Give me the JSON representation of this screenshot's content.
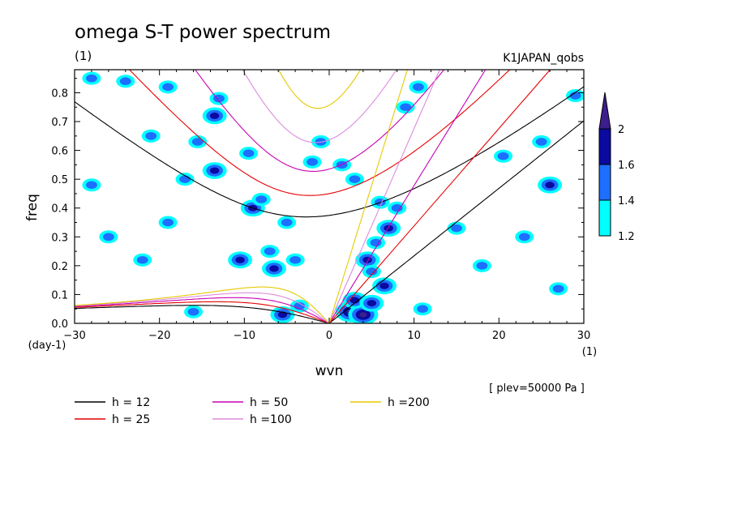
{
  "title": "omega S-T power spectrum",
  "subtitle": "(1)",
  "dataset_label": "K1JAPAN_qobs",
  "level_label": "[ plev=50000 Pa ]",
  "chart_data": {
    "type": "heatmap",
    "xlabel": "wvn",
    "xunit": "(1)",
    "ylabel": "freq",
    "yunit": "(day-1)",
    "xlim": [
      -30,
      30
    ],
    "ylim": [
      0,
      0.88
    ],
    "xticks": [
      -30,
      -20,
      -10,
      0,
      10,
      20,
      30
    ],
    "yticks": [
      0.0,
      0.1,
      0.2,
      0.3,
      0.4,
      0.5,
      0.6,
      0.7,
      0.8
    ],
    "colorbar": {
      "levels": [
        1.2,
        1.4,
        1.6,
        2
      ],
      "colors": [
        "#00ffff",
        "#1e6eff",
        "#0a0aa0",
        "#3c1e8c"
      ]
    },
    "dispersion_curves": [
      {
        "label": "h = 12",
        "h": 12,
        "color": "#000000"
      },
      {
        "label": "h = 25",
        "h": 25,
        "color": "#e60000"
      },
      {
        "label": "h = 50",
        "h": 50,
        "color": "#c800b4"
      },
      {
        "label": "h =100",
        "h": 100,
        "color": "#dc8cdc"
      },
      {
        "label": "h =200",
        "h": 200,
        "color": "#e6c800"
      }
    ],
    "power_blobs": [
      {
        "x": 2.5,
        "y": 0.04,
        "level": 3
      },
      {
        "x": 4.0,
        "y": 0.03,
        "level": 3
      },
      {
        "x": 3.0,
        "y": 0.08,
        "level": 2
      },
      {
        "x": 5.0,
        "y": 0.07,
        "level": 2
      },
      {
        "x": 6.5,
        "y": 0.13,
        "level": 2
      },
      {
        "x": 4.5,
        "y": 0.22,
        "level": 2
      },
      {
        "x": 5.5,
        "y": 0.28,
        "level": 1
      },
      {
        "x": 7.0,
        "y": 0.33,
        "level": 2
      },
      {
        "x": 8.0,
        "y": 0.4,
        "level": 1
      },
      {
        "x": 5.0,
        "y": 0.18,
        "level": 1
      },
      {
        "x": 6.0,
        "y": 0.42,
        "level": 1
      },
      {
        "x": 9.0,
        "y": 0.75,
        "level": 1
      },
      {
        "x": 10.5,
        "y": 0.82,
        "level": 1
      },
      {
        "x": -9.0,
        "y": 0.4,
        "level": 2
      },
      {
        "x": -8.0,
        "y": 0.43,
        "level": 1
      },
      {
        "x": -10.5,
        "y": 0.22,
        "level": 2
      },
      {
        "x": -7.0,
        "y": 0.25,
        "level": 1
      },
      {
        "x": -13.5,
        "y": 0.72,
        "level": 2
      },
      {
        "x": -13.0,
        "y": 0.78,
        "level": 1
      },
      {
        "x": -15.5,
        "y": 0.63,
        "level": 1
      },
      {
        "x": -13.5,
        "y": 0.53,
        "level": 2
      },
      {
        "x": -17.0,
        "y": 0.5,
        "level": 1
      },
      {
        "x": -6.5,
        "y": 0.19,
        "level": 2
      },
      {
        "x": -4.0,
        "y": 0.22,
        "level": 1
      },
      {
        "x": -5.0,
        "y": 0.35,
        "level": 1
      },
      {
        "x": -5.5,
        "y": 0.03,
        "level": 2
      },
      {
        "x": -3.5,
        "y": 0.06,
        "level": 1
      },
      {
        "x": -19.0,
        "y": 0.82,
        "level": 1
      },
      {
        "x": -24.0,
        "y": 0.84,
        "level": 1
      },
      {
        "x": -28.0,
        "y": 0.85,
        "level": 1
      },
      {
        "x": -28.0,
        "y": 0.48,
        "level": 1
      },
      {
        "x": -21.0,
        "y": 0.65,
        "level": 1
      },
      {
        "x": -9.5,
        "y": 0.59,
        "level": 1
      },
      {
        "x": -2.0,
        "y": 0.56,
        "level": 1
      },
      {
        "x": -1.0,
        "y": 0.63,
        "level": 1
      },
      {
        "x": 1.5,
        "y": 0.55,
        "level": 1
      },
      {
        "x": 3.0,
        "y": 0.5,
        "level": 1
      },
      {
        "x": 26.0,
        "y": 0.48,
        "level": 2
      },
      {
        "x": 29.0,
        "y": 0.79,
        "level": 1
      },
      {
        "x": 25.0,
        "y": 0.63,
        "level": 1
      },
      {
        "x": 15.0,
        "y": 0.33,
        "level": 1
      },
      {
        "x": 20.5,
        "y": 0.58,
        "level": 1
      },
      {
        "x": 18.0,
        "y": 0.2,
        "level": 1
      },
      {
        "x": 23.0,
        "y": 0.3,
        "level": 1
      },
      {
        "x": 27.0,
        "y": 0.12,
        "level": 1
      },
      {
        "x": 11.0,
        "y": 0.05,
        "level": 1
      },
      {
        "x": -16.0,
        "y": 0.04,
        "level": 1
      },
      {
        "x": -26.0,
        "y": 0.3,
        "level": 1
      },
      {
        "x": -22.0,
        "y": 0.22,
        "level": 1
      },
      {
        "x": -19.0,
        "y": 0.35,
        "level": 1
      }
    ]
  }
}
